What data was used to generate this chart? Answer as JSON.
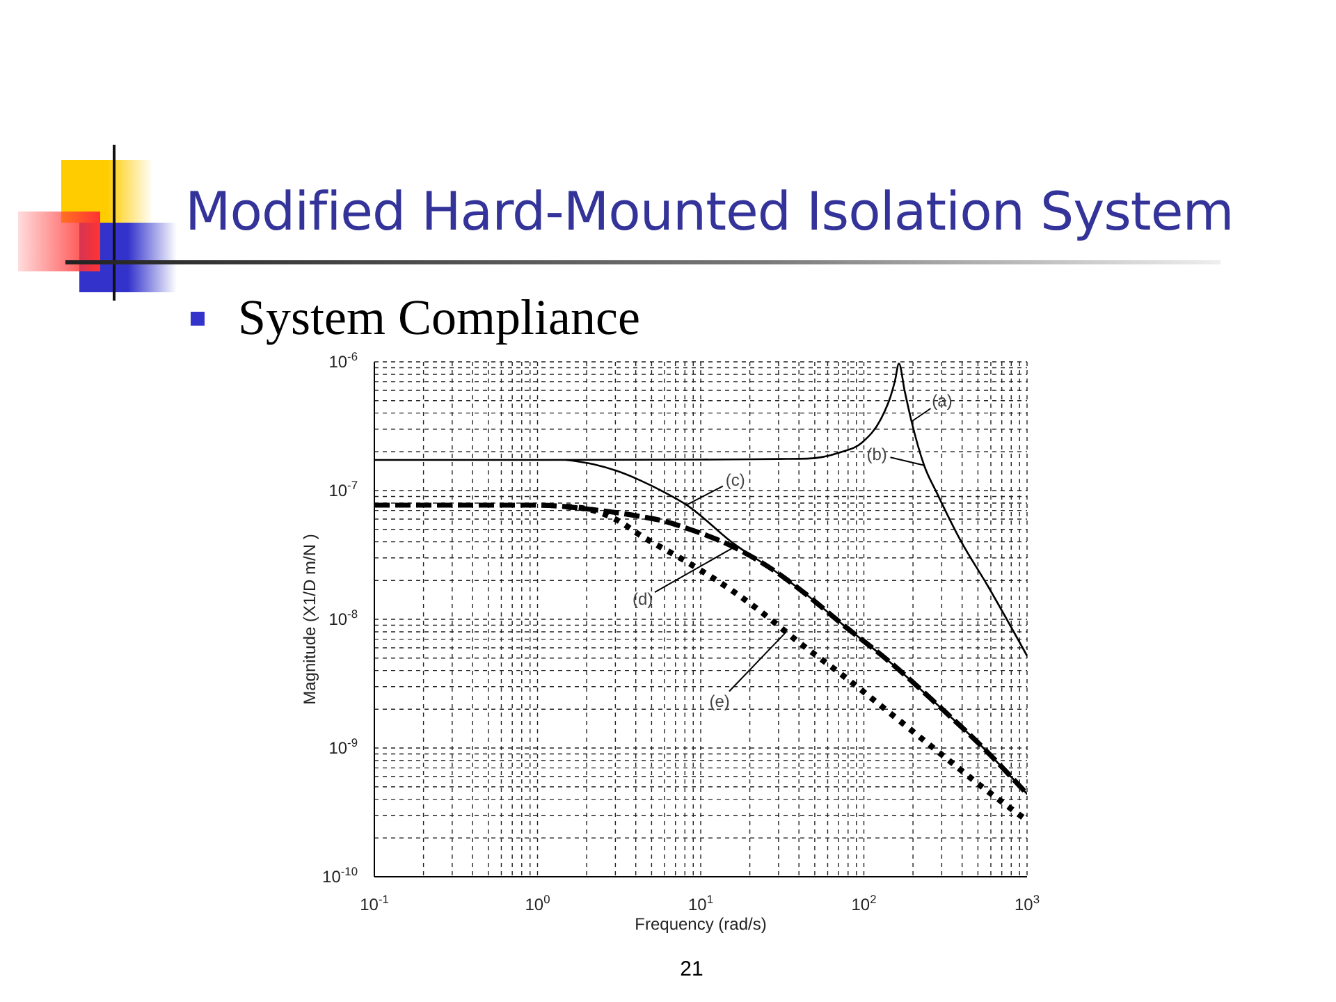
{
  "chart_data": {
    "type": "line",
    "title": "Modified Hard-Mounted Isolation System",
    "subtitle": "System Compliance",
    "xlabel": "Frequency (rad/s)",
    "ylabel": "Magnitude (X1/D m/N )",
    "annotations": [
      {
        "text": "(a)",
        "x": 196,
        "y": 3.44e-07
      },
      {
        "text": "(b)",
        "x": 234,
        "y": 1.57e-07
      },
      {
        "text": "(c)",
        "x": 8.19,
        "y": 7.74e-08
      },
      {
        "text": "(d)",
        "x": 15.8,
        "y": 3.6e-08
      },
      {
        "text": "(e)",
        "x": 33.5,
        "y": 8e-09
      },
      "21"
    ],
    "series": [
      {
        "color": "#000000",
        "line_style": "solid",
        "x": [
          0.1,
          1,
          10,
          30,
          44.9,
          70.6,
          98.6,
          127,
          146,
          155,
          164,
          178,
          196,
          234,
          281,
          389,
          577,
          1000
        ],
        "values": [
          1.73e-07,
          1.73e-07,
          1.74e-07,
          1.76e-07,
          1.77e-07,
          1.97e-07,
          2.39e-07,
          3.59e-07,
          5.43e-07,
          7.1e-07,
          9.7e-07,
          5.9e-07,
          3.44e-07,
          1.57e-07,
          9.5e-08,
          4.15e-08,
          1.8e-08,
          5.2e-09
        ]
      },
      {
        "color": "#000000",
        "line_style": "solid",
        "x": [
          1.5,
          2.21,
          3.07,
          4.26,
          5.9,
          8.19,
          15.8,
          30.2,
          39.5,
          75.8,
          146,
          281,
          540,
          1000
        ],
        "values": [
          1.73e-07,
          1.6e-07,
          1.42e-07,
          1.2e-07,
          9.8e-08,
          7.74e-08,
          3.9e-08,
          2.25e-08,
          1.75e-08,
          8.9e-09,
          4.6e-09,
          2.18e-09,
          1e-09,
          4.4e-10
        ]
      },
      {
        "color": "#000000",
        "line_style": "dashed",
        "x": [
          0.1,
          1,
          2.21,
          4.26,
          5.9,
          8.19,
          15.8,
          30.2,
          39.5,
          75.8,
          146,
          281,
          540,
          1000
        ],
        "values": [
          7.7e-08,
          7.7e-08,
          7.1e-08,
          6.3e-08,
          5.8e-08,
          5.1e-08,
          3.66e-08,
          2.25e-08,
          1.75e-08,
          8.9e-09,
          4.6e-09,
          2.18e-09,
          1e-09,
          4.4e-10
        ]
      },
      {
        "color": "#000000",
        "line_style": "dotted",
        "x": [
          1.5,
          2.21,
          3.07,
          4.26,
          8.19,
          15.8,
          23.3,
          39.5,
          75.8,
          146,
          281,
          540,
          1000
        ],
        "values": [
          7.5e-08,
          7e-08,
          5.9e-08,
          4.5e-08,
          2.8e-08,
          1.65e-08,
          1.15e-08,
          6.7e-09,
          3.59e-09,
          1.85e-09,
          9.5e-10,
          4.9e-10,
          2.74e-10
        ]
      }
    ],
    "log": "xy",
    "grid": true,
    "xlim": [
      0.1,
      1000
    ],
    "ylim": [
      1e-10,
      1e-06
    ],
    "xticks": [
      {
        "value": 0.1,
        "label": "10$^{-1}$"
      },
      {
        "value": 0.2,
        "label": null
      },
      {
        "value": 0.3,
        "label": null
      },
      {
        "value": 0.4,
        "label": null
      },
      {
        "value": 0.5,
        "label": null
      },
      {
        "value": 0.6,
        "label": null
      },
      {
        "value": 0.7,
        "label": null
      },
      {
        "value": 0.8,
        "label": null
      },
      {
        "value": 0.9,
        "label": null
      },
      {
        "value": 1,
        "label": "10$^{0}$"
      },
      {
        "value": 2,
        "label": null
      },
      {
        "value": 3,
        "label": null
      },
      {
        "value": 4,
        "label": null
      },
      {
        "value": 5,
        "label": null
      },
      {
        "value": 6,
        "label": null
      },
      {
        "value": 7,
        "label": null
      },
      {
        "value": 8,
        "label": null
      },
      {
        "value": 9,
        "label": null
      },
      {
        "value": 10,
        "label": "10$^{1}$"
      },
      {
        "value": 20,
        "label": null
      },
      {
        "value": 30,
        "label": null
      },
      {
        "value": 40,
        "label": null
      },
      {
        "value": 50,
        "label": null
      },
      {
        "value": 60,
        "label": null
      },
      {
        "value": 70,
        "label": null
      },
      {
        "value": 80,
        "label": null
      },
      {
        "value": 90,
        "label": null
      },
      {
        "value": 100,
        "label": "10$^{2}$"
      },
      {
        "value": 200,
        "label": null
      },
      {
        "value": 300,
        "label": null
      },
      {
        "value": 400,
        "label": null
      },
      {
        "value": 500,
        "label": null
      },
      {
        "value": 600,
        "label": null
      },
      {
        "value": 700,
        "label": null
      },
      {
        "value": 800,
        "label": null
      },
      {
        "value": 900,
        "label": null
      },
      {
        "value": 1000,
        "label": "10$^{3}$"
      }
    ],
    "yticks": [
      {
        "value": 1e-10,
        "label": "10$^{-10}$"
      },
      {
        "value": 2e-10,
        "label": null
      },
      {
        "value": 3e-10,
        "label": null
      },
      {
        "value": 4e-10,
        "label": null
      },
      {
        "value": 5e-10,
        "label": null
      },
      {
        "value": 6e-10,
        "label": null
      },
      {
        "value": 7e-10,
        "label": null
      },
      {
        "value": 8e-10,
        "label": null
      },
      {
        "value": 9e-10,
        "label": null
      },
      {
        "value": 1e-09,
        "label": "10$^{-9}$"
      },
      {
        "value": 2e-09,
        "label": null
      },
      {
        "value": 3e-09,
        "label": null
      },
      {
        "value": 4e-09,
        "label": null
      },
      {
        "value": 5e-09,
        "label": null
      },
      {
        "value": 6e-09,
        "label": null
      },
      {
        "value": 7e-09,
        "label": null
      },
      {
        "value": 8e-09,
        "label": null
      },
      {
        "value": 9e-09,
        "label": null
      },
      {
        "value": 1e-08,
        "label": "10$^{-8}$"
      },
      {
        "value": 2e-08,
        "label": null
      },
      {
        "value": 3e-08,
        "label": null
      },
      {
        "value": 4e-08,
        "label": null
      },
      {
        "value": 5e-08,
        "label": null
      },
      {
        "value": 6e-08,
        "label": null
      },
      {
        "value": 7e-08,
        "label": null
      },
      {
        "value": 8e-08,
        "label": null
      },
      {
        "value": 9e-08,
        "label": null
      },
      {
        "value": 1e-07,
        "label": "10$^{-7}$"
      },
      {
        "value": 2e-07,
        "label": null
      },
      {
        "value": 3e-07,
        "label": null
      },
      {
        "value": 4e-07,
        "label": null
      },
      {
        "value": 5e-07,
        "label": null
      },
      {
        "value": 6e-07,
        "label": null
      },
      {
        "value": 7e-07,
        "label": null
      },
      {
        "value": 8e-07,
        "label": null
      },
      {
        "value": 9e-07,
        "label": null
      },
      {
        "value": 1e-06,
        "label": "10$^{-6}$"
      }
    ]
  }
}
